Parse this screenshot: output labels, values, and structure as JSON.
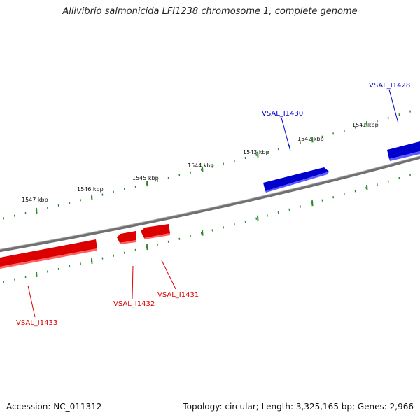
{
  "title": "Aliivibrio salmonicida LFI1238 chromosome 1, complete genome",
  "footer": {
    "accession": "Accession: NC_011312",
    "summary": "Topology: circular; Length: 3,325,165 bp; Genes: 2,966"
  },
  "colors": {
    "backbone": "#808080",
    "tick": "#2e8b2e",
    "forward_gene": "#0000cc",
    "reverse_gene": "#dd0000"
  },
  "kbp_ticks": [
    {
      "label": "1541 kbp"
    },
    {
      "label": "1542 kbp"
    },
    {
      "label": "1543 kbp"
    },
    {
      "label": "1544 kbp"
    },
    {
      "label": "1545 kbp"
    },
    {
      "label": "1546 kbp"
    },
    {
      "label": "1547 kbp"
    }
  ],
  "genes": [
    {
      "label": "VSAL_I1428",
      "strand": "forward"
    },
    {
      "label": "VSAL_I1430",
      "strand": "forward"
    },
    {
      "label": "VSAL_I1431",
      "strand": "reverse"
    },
    {
      "label": "VSAL_I1432",
      "strand": "reverse"
    },
    {
      "label": "VSAL_I1433",
      "strand": "reverse"
    }
  ]
}
